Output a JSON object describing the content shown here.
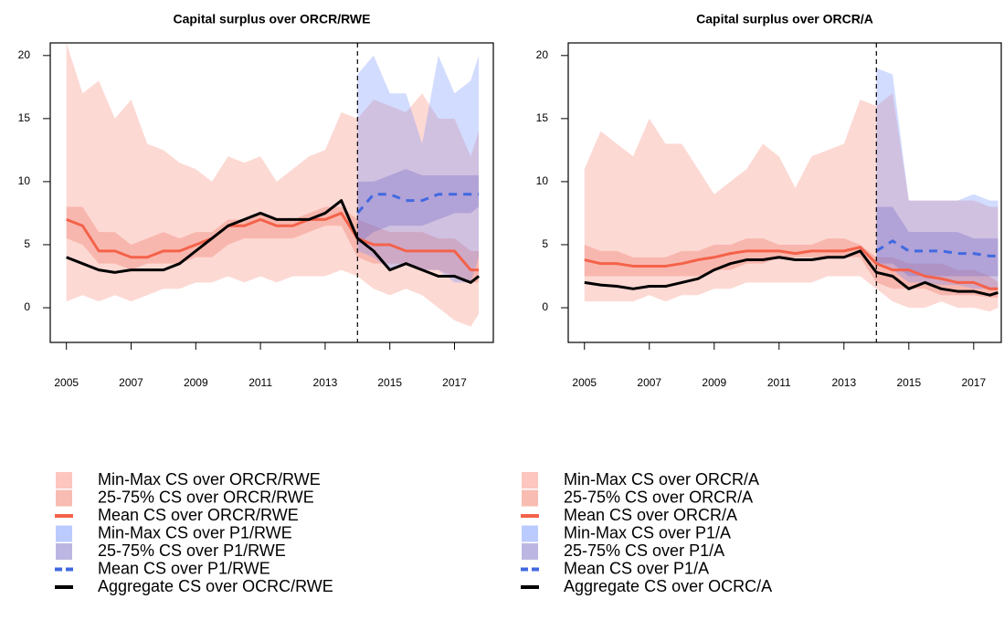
{
  "chart_data": [
    {
      "type": "line",
      "title": "Capital surplus over ORCR/RWE",
      "x": [
        2005,
        2005.5,
        2006,
        2006.5,
        2007,
        2007.5,
        2008,
        2008.5,
        2009,
        2009.5,
        2010,
        2010.5,
        2011,
        2011.5,
        2012,
        2012.5,
        2013,
        2013.5,
        2014,
        2014.5,
        2015,
        2015.5,
        2016,
        2016.5,
        2017,
        2017.5,
        2017.75
      ],
      "xlim": [
        2004.5,
        2018.2
      ],
      "xticks": [
        2005,
        2007,
        2009,
        2011,
        2013,
        2015,
        2017
      ],
      "ylim": [
        -2.75,
        21
      ],
      "yticks": [
        0,
        5,
        10,
        15,
        20
      ],
      "vline": 2014,
      "series": [
        {
          "name": "Min-Max CS over ORCR/RWE",
          "color": "#fa8072",
          "style": "band",
          "low": [
            0.5,
            1,
            0.5,
            1,
            0.5,
            1,
            1.5,
            1.5,
            2,
            2,
            2.5,
            2,
            2.5,
            2,
            2.5,
            2.5,
            2.5,
            3,
            2.5,
            1.5,
            1,
            1.5,
            1,
            0,
            -1,
            -1.5,
            -0.5
          ],
          "high": [
            21,
            17,
            18,
            15,
            16.5,
            13,
            12.5,
            11.5,
            11,
            10,
            12,
            11.5,
            12,
            10,
            11,
            12,
            12.5,
            15.5,
            15,
            16.5,
            16,
            15.5,
            17,
            15,
            15,
            12,
            14
          ]
        },
        {
          "name": "25-75% CS over ORCR/RWE",
          "color": "#ef6a55",
          "style": "band",
          "low": [
            5.5,
            5,
            3.5,
            3.5,
            3,
            3.5,
            3.5,
            3.5,
            4,
            4,
            5,
            5.5,
            5.5,
            5.5,
            5.5,
            6,
            6.5,
            6.5,
            4,
            3.5,
            3.5,
            3.5,
            3,
            3,
            2.5,
            2,
            2
          ],
          "high": [
            8,
            8,
            6,
            6,
            5,
            5.5,
            6,
            5.5,
            6,
            6,
            7,
            7,
            7.5,
            7,
            7,
            7.5,
            8,
            8,
            7,
            6.5,
            6,
            6,
            6,
            5.5,
            5.5,
            4.5,
            4.5
          ]
        },
        {
          "name": "Mean CS over ORCR/RWE",
          "color": "#f4624a",
          "style": "solid",
          "values": [
            7,
            6.5,
            4.5,
            4.5,
            4,
            4,
            4.5,
            4.5,
            5,
            5.5,
            6.5,
            6.5,
            7,
            6.5,
            6.5,
            7,
            7,
            7.5,
            5.5,
            5,
            5,
            4.5,
            4.5,
            4.5,
            4.5,
            3,
            3
          ]
        },
        {
          "name": "Min-Max CS over P1/RWE",
          "color": "#6b8cff",
          "style": "band",
          "low": [
            null,
            null,
            null,
            null,
            null,
            null,
            null,
            null,
            null,
            null,
            null,
            null,
            null,
            null,
            null,
            null,
            null,
            null,
            4.5,
            4,
            3,
            3.5,
            3,
            3,
            2,
            2,
            4
          ],
          "high": [
            null,
            null,
            null,
            null,
            null,
            null,
            null,
            null,
            null,
            null,
            null,
            null,
            null,
            null,
            null,
            null,
            null,
            null,
            18.5,
            20,
            17,
            17,
            13,
            20,
            17,
            18,
            20
          ]
        },
        {
          "name": "25-75% CS over P1/RWE",
          "color": "#6a5fbf",
          "style": "band",
          "low": [
            null,
            null,
            null,
            null,
            null,
            null,
            null,
            null,
            null,
            null,
            null,
            null,
            null,
            null,
            null,
            null,
            null,
            null,
            5,
            6,
            6.5,
            6.5,
            6.5,
            7,
            7.5,
            7.5,
            8
          ],
          "high": [
            null,
            null,
            null,
            null,
            null,
            null,
            null,
            null,
            null,
            null,
            null,
            null,
            null,
            null,
            null,
            null,
            null,
            null,
            10,
            10,
            10.5,
            11,
            10.5,
            10.5,
            10.5,
            10.5,
            10.5
          ]
        },
        {
          "name": "Mean CS over P1/RWE",
          "color": "#4169e1",
          "style": "dashed",
          "values": [
            null,
            null,
            null,
            null,
            null,
            null,
            null,
            null,
            null,
            null,
            null,
            null,
            null,
            null,
            null,
            null,
            null,
            null,
            7.5,
            9,
            9,
            8.5,
            8.5,
            9,
            9,
            9,
            9
          ]
        },
        {
          "name": "Aggregate CS over OCRC/RWE",
          "color": "#000000",
          "style": "solid",
          "values": [
            4,
            3.5,
            3,
            2.8,
            3,
            3,
            3,
            3.5,
            4.5,
            5.5,
            6.5,
            7,
            7.5,
            7,
            7,
            7,
            7.5,
            8.5,
            5.5,
            4.5,
            3,
            3.5,
            3,
            2.5,
            2.5,
            2,
            2.5
          ]
        }
      ]
    },
    {
      "type": "line",
      "title": "Capital surplus over ORCR/A",
      "x": [
        2005,
        2005.5,
        2006,
        2006.5,
        2007,
        2007.5,
        2008,
        2008.5,
        2009,
        2009.5,
        2010,
        2010.5,
        2011,
        2011.5,
        2012,
        2012.5,
        2013,
        2013.5,
        2014,
        2014.5,
        2015,
        2015.5,
        2016,
        2016.5,
        2017,
        2017.5,
        2017.75
      ],
      "xlim": [
        2004.5,
        2017.85
      ],
      "xticks": [
        2005,
        2007,
        2009,
        2011,
        2013,
        2015,
        2017
      ],
      "ylim": [
        -2.75,
        21
      ],
      "yticks": [
        0,
        5,
        10,
        15,
        20
      ],
      "vline": 2014,
      "series": [
        {
          "name": "Min-Max CS over ORCR/A",
          "color": "#fa8072",
          "style": "band",
          "low": [
            0.5,
            0.5,
            0.5,
            0.5,
            1,
            0.5,
            1,
            1,
            1.5,
            1.5,
            2,
            2,
            2,
            2,
            2,
            2.5,
            2.5,
            2.5,
            1.5,
            0.5,
            0,
            0,
            0.5,
            0,
            0,
            -0.3,
            0
          ],
          "high": [
            11,
            14,
            13,
            12,
            15,
            13,
            13,
            11,
            9,
            10,
            11,
            13,
            12,
            9.5,
            12,
            12.5,
            13,
            16.5,
            16,
            17,
            8.5,
            8.5,
            8.5,
            8.5,
            8.5,
            8,
            8
          ]
        },
        {
          "name": "25-75% CS over ORCR/A",
          "color": "#ef6a55",
          "style": "band",
          "low": [
            2.5,
            2.5,
            2.5,
            2.5,
            2.5,
            2.5,
            2.5,
            2.5,
            3,
            3,
            3.5,
            3.5,
            4,
            4,
            4,
            4,
            4,
            4,
            2,
            1.5,
            1.5,
            1.5,
            1,
            1,
            1,
            0.8,
            0.8
          ],
          "high": [
            5,
            4.5,
            4.5,
            4,
            4,
            4,
            4.5,
            4.5,
            5,
            5,
            5.5,
            5.5,
            5,
            5,
            5,
            5.5,
            5.5,
            5,
            4,
            4,
            3.5,
            3.5,
            3.5,
            3,
            3,
            2.5,
            2
          ]
        },
        {
          "name": "Mean CS over ORCR/A",
          "color": "#f4624a",
          "style": "solid",
          "values": [
            3.8,
            3.5,
            3.5,
            3.3,
            3.3,
            3.3,
            3.5,
            3.8,
            4,
            4.3,
            4.5,
            4.5,
            4.5,
            4.3,
            4.5,
            4.5,
            4.5,
            4.8,
            3.5,
            3,
            3,
            2.5,
            2.3,
            2,
            2,
            1.5,
            1.5
          ]
        },
        {
          "name": "Min-Max CS over P1/A",
          "color": "#6b8cff",
          "style": "band",
          "low": [
            null,
            null,
            null,
            null,
            null,
            null,
            null,
            null,
            null,
            null,
            null,
            null,
            null,
            null,
            null,
            null,
            null,
            null,
            3.5,
            3,
            2,
            2,
            1.8,
            1.8,
            1.5,
            1.5,
            1.5
          ],
          "high": [
            null,
            null,
            null,
            null,
            null,
            null,
            null,
            null,
            null,
            null,
            null,
            null,
            null,
            null,
            null,
            null,
            null,
            null,
            19,
            18.5,
            8.5,
            8.5,
            8.5,
            8.5,
            9,
            8.5,
            8.5
          ]
        },
        {
          "name": "25-75% CS over P1/A",
          "color": "#6a5fbf",
          "style": "band",
          "low": [
            null,
            null,
            null,
            null,
            null,
            null,
            null,
            null,
            null,
            null,
            null,
            null,
            null,
            null,
            null,
            null,
            null,
            null,
            3.5,
            3.5,
            2.5,
            2.5,
            2.5,
            2.5,
            2.5,
            2.5,
            2.5
          ],
          "high": [
            null,
            null,
            null,
            null,
            null,
            null,
            null,
            null,
            null,
            null,
            null,
            null,
            null,
            null,
            null,
            null,
            null,
            null,
            8,
            8,
            6,
            6,
            6,
            6,
            5.5,
            5.5,
            5.5
          ]
        },
        {
          "name": "Mean CS over P1/A",
          "color": "#4169e1",
          "style": "dashed",
          "values": [
            null,
            null,
            null,
            null,
            null,
            null,
            null,
            null,
            null,
            null,
            null,
            null,
            null,
            null,
            null,
            null,
            null,
            null,
            4.5,
            5.3,
            4.5,
            4.5,
            4.5,
            4.3,
            4.3,
            4.1,
            4.1
          ]
        },
        {
          "name": "Aggregate CS over OCRC/A",
          "color": "#000000",
          "style": "solid",
          "values": [
            2,
            1.8,
            1.7,
            1.5,
            1.7,
            1.7,
            2,
            2.3,
            3,
            3.5,
            3.8,
            3.8,
            4,
            3.8,
            3.8,
            4,
            4,
            4.5,
            2.8,
            2.5,
            1.5,
            2,
            1.5,
            1.3,
            1.3,
            1,
            1.2
          ]
        }
      ]
    }
  ]
}
